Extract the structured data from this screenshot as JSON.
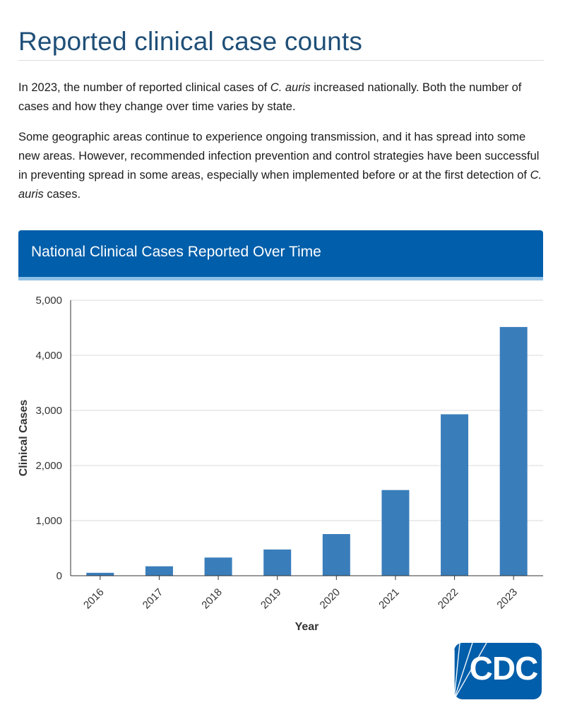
{
  "page": {
    "title": "Reported clinical case counts",
    "para1": [
      {
        "text": "In 2023, the number of reported clinical cases of "
      },
      {
        "text": "C. auris",
        "italic": true
      },
      {
        "text": " increased nationally. Both the number of cases and how they change over time varies by state."
      }
    ],
    "para2": [
      {
        "text": "Some geographic areas continue to experience ongoing transmission, and it has spread into some new areas. However, recommended infection prevention and control strategies have been successful in preventing spread in some areas, especially when implemented before or at the first detection of "
      },
      {
        "text": "C. auris",
        "italic": true
      },
      {
        "text": " cases."
      }
    ]
  },
  "chart_header": {
    "title": "National Clinical Cases Reported Over Time"
  },
  "chart_data": {
    "type": "bar",
    "categories": [
      "2016",
      "2017",
      "2018",
      "2019",
      "2020",
      "2021",
      "2022",
      "2023"
    ],
    "values": [
      53,
      171,
      330,
      476,
      756,
      1555,
      2930,
      4514
    ],
    "xlabel": "Year",
    "ylabel": "Clinical Cases",
    "ylim": [
      0,
      5000
    ],
    "yticks": [
      0,
      1000,
      2000,
      3000,
      4000,
      5000
    ],
    "ytick_labels": [
      "0",
      "1,000",
      "2,000",
      "3,000",
      "4,000",
      "5,000"
    ],
    "grid": true,
    "bar_color": "#3a7dbb"
  },
  "logo": {
    "text": "CDC",
    "color": "#005eaa"
  }
}
